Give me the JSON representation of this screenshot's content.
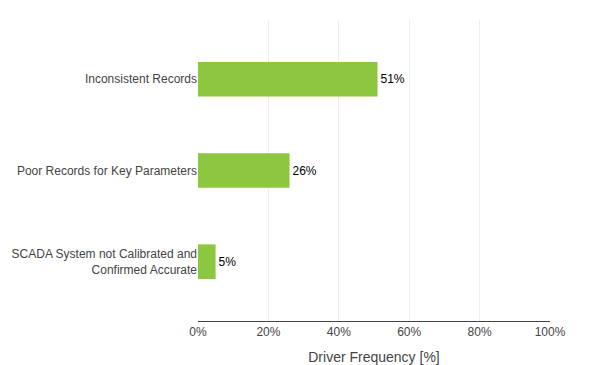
{
  "chart_data": {
    "type": "bar",
    "orientation": "horizontal",
    "categories": [
      "SCADA System not Calibrated and\nConfirmed Accurate",
      "Poor Records for Key Parameters",
      "Inconsistent Records"
    ],
    "values": [
      0.05,
      0.26,
      0.51
    ],
    "value_labels": [
      "5%",
      "26%",
      "51%"
    ],
    "data_labels": true,
    "color": "#8DC63F",
    "xlabel": "Driver Frequency [%]",
    "xlim": [
      0,
      1.0
    ],
    "xticks": [
      {
        "value": 0,
        "label": "0%"
      },
      {
        "value": 0.2,
        "label": "20%"
      },
      {
        "value": 0.4,
        "label": "40%"
      },
      {
        "value": 0.6,
        "label": "60%"
      },
      {
        "value": 0.8,
        "label": "80%"
      },
      {
        "value": 1.0,
        "label": "100%"
      }
    ],
    "grid": true
  }
}
